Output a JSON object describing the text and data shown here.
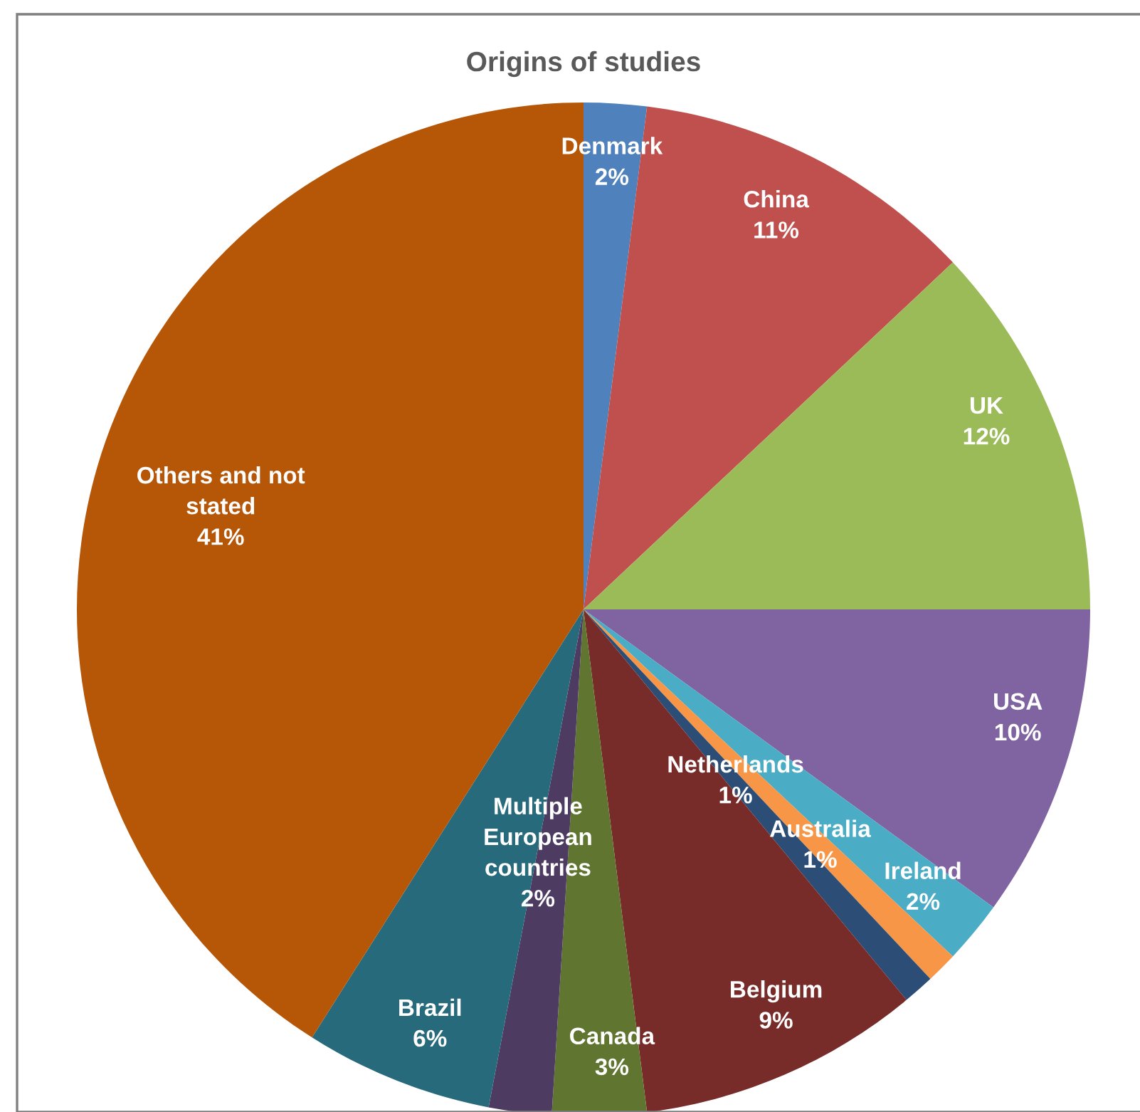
{
  "chart_data": {
    "type": "pie",
    "title": "Origins of studies",
    "categories": [
      "Denmark",
      "China",
      "UK",
      "USA",
      "Ireland",
      "Australia",
      "Netherlands",
      "Belgium",
      "Canada",
      "Multiple European countries",
      "Brazil",
      "Others and not stated"
    ],
    "values": [
      2,
      11,
      12,
      10,
      2,
      1,
      1,
      9,
      3,
      2,
      6,
      41
    ],
    "colors": [
      "#4f81bd",
      "#c0504d",
      "#9bbb59",
      "#8064a2",
      "#4bacc6",
      "#f79646",
      "#2c4d75",
      "#772c2a",
      "#5f7530",
      "#4d3b62",
      "#276a7c",
      "#b65708"
    ],
    "value_labels": [
      "2%",
      "11%",
      "12%",
      "10%",
      "2%",
      "1%",
      "1%",
      "9%",
      "3%",
      "2%",
      "6%",
      "41%"
    ]
  }
}
